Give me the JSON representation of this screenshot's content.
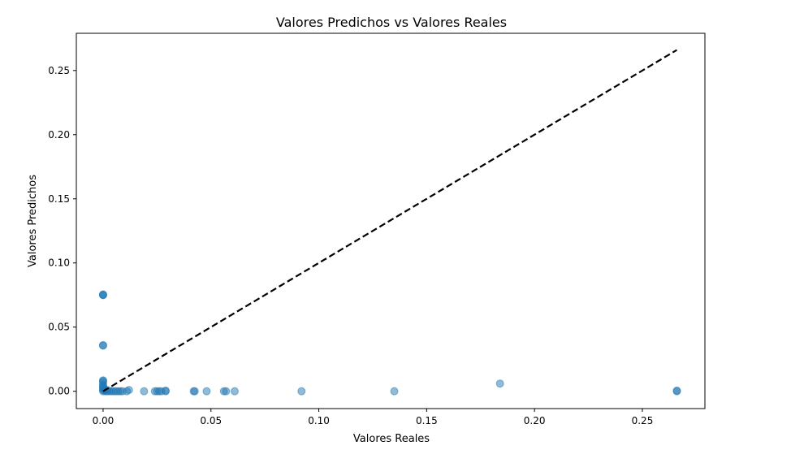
{
  "chart_data": {
    "type": "scatter",
    "title": "Valores Predichos vs Valores Reales",
    "xlabel": "Valores Reales",
    "ylabel": "Valores Predichos",
    "xlim": [
      -0.0124,
      0.279
    ],
    "ylim": [
      -0.0135,
      0.279
    ],
    "xticks": [
      0.0,
      0.05,
      0.1,
      0.15,
      0.2,
      0.25
    ],
    "xtick_labels": [
      "0.00",
      "0.05",
      "0.10",
      "0.15",
      "0.20",
      "0.25"
    ],
    "yticks": [
      0.0,
      0.05,
      0.1,
      0.15,
      0.2,
      0.25
    ],
    "ytick_labels": [
      "0.00",
      "0.05",
      "0.10",
      "0.15",
      "0.20",
      "0.25"
    ],
    "grid": false,
    "point_color": "#1f77b4",
    "point_alpha": 0.5,
    "reference_line": {
      "from": [
        0.0,
        0.0
      ],
      "to": [
        0.266,
        0.266
      ],
      "style": "dashed",
      "color": "#000000"
    },
    "points": [
      [
        0.0,
        0.075
      ],
      [
        0.0,
        0.075
      ],
      [
        0.0,
        0.0755
      ],
      [
        0.0,
        0.036
      ],
      [
        0.0,
        0.0355
      ],
      [
        0.0,
        0.008
      ],
      [
        0.0,
        0.0085
      ],
      [
        0.0,
        0.007
      ],
      [
        0.0,
        0.005
      ],
      [
        0.0,
        0.004
      ],
      [
        0.0,
        0.003
      ],
      [
        0.0,
        0.002
      ],
      [
        0.0,
        0.001
      ],
      [
        0.0,
        0.0
      ],
      [
        0.001,
        0.0
      ],
      [
        0.001,
        0.001
      ],
      [
        0.002,
        0.0
      ],
      [
        0.002,
        0.001
      ],
      [
        0.003,
        0.0
      ],
      [
        0.004,
        0.0
      ],
      [
        0.005,
        0.0
      ],
      [
        0.006,
        0.0
      ],
      [
        0.007,
        0.0
      ],
      [
        0.008,
        0.0
      ],
      [
        0.009,
        0.0
      ],
      [
        0.011,
        0.0
      ],
      [
        0.012,
        0.001
      ],
      [
        0.019,
        0.0
      ],
      [
        0.024,
        0.0
      ],
      [
        0.025,
        0.0
      ],
      [
        0.026,
        0.0
      ],
      [
        0.027,
        0.0
      ],
      [
        0.029,
        0.0
      ],
      [
        0.029,
        0.0005
      ],
      [
        0.042,
        0.0
      ],
      [
        0.0425,
        0.0
      ],
      [
        0.048,
        0.0
      ],
      [
        0.056,
        0.0
      ],
      [
        0.057,
        0.0
      ],
      [
        0.061,
        0.0
      ],
      [
        0.092,
        0.0
      ],
      [
        0.135,
        0.0
      ],
      [
        0.184,
        0.006
      ],
      [
        0.266,
        0.0
      ],
      [
        0.266,
        0.0005
      ]
    ]
  }
}
